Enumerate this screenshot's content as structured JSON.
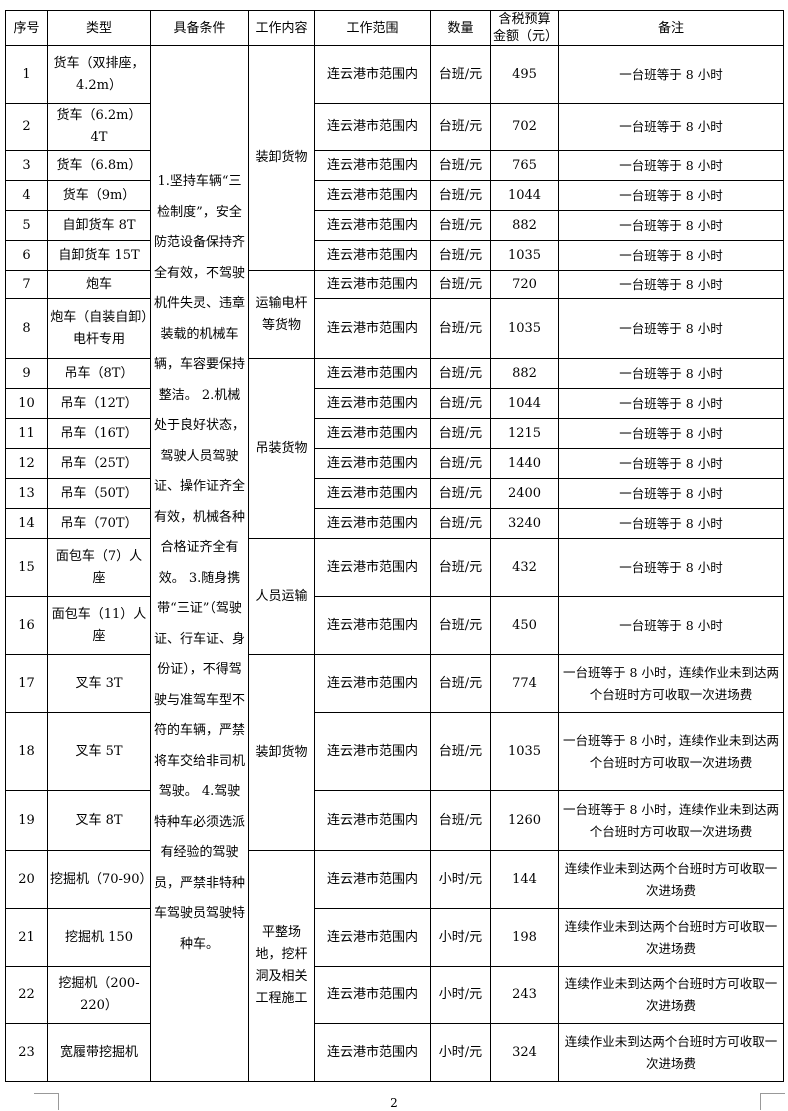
{
  "headers": {
    "no": "序号",
    "type": "类型",
    "conditions": "具备条件",
    "work": "工作内容",
    "scope": "工作范围",
    "qty": "数量",
    "budget": "含税预算金额（元）",
    "note": "备注"
  },
  "conditions": "1.坚持车辆“三检制度”，安全防范设备保持齐全有效，不驾驶机件失灵、违章装载的机械车辆，车容要保持整洁。 2.机械处于良好状态，驾驶人员驾驶证、操作证齐全有效，机械各种合格证齐全有效。 3.随身携带“三证”（驾驶证、行车证、身份证），不得驾驶与准驾车型不符的车辆，严禁将车交给非司机驾驶。 4.驾驶特种车必须选派有经验的驾驶员，严禁非特种车驾驶员驾驶特种车。",
  "work": [
    "装卸货物",
    "运输电杆等货物",
    "吊装货物",
    "人员运输",
    "装卸货物",
    "平整场地，挖杆洞及相关工程施工"
  ],
  "rows": [
    {
      "no": "1",
      "type": "货车（双排座，4.2m）",
      "scope": "连云港市范围内",
      "qty": "台班/元",
      "budget": "495",
      "note": "一台班等于 8 小时"
    },
    {
      "no": "2",
      "type": "货车（6.2m）4T",
      "scope": "连云港市范围内",
      "qty": "台班/元",
      "budget": "702",
      "note": "一台班等于 8 小时"
    },
    {
      "no": "3",
      "type": "货车（6.8m）",
      "scope": "连云港市范围内",
      "qty": "台班/元",
      "budget": "765",
      "note": "一台班等于 8 小时"
    },
    {
      "no": "4",
      "type": "货车（9m）",
      "scope": "连云港市范围内",
      "qty": "台班/元",
      "budget": "1044",
      "note": "一台班等于 8 小时"
    },
    {
      "no": "5",
      "type": "自卸货车 8T",
      "scope": "连云港市范围内",
      "qty": "台班/元",
      "budget": "882",
      "note": "一台班等于 8 小时"
    },
    {
      "no": "6",
      "type": "自卸货车 15T",
      "scope": "连云港市范围内",
      "qty": "台班/元",
      "budget": "1035",
      "note": "一台班等于 8 小时"
    },
    {
      "no": "7",
      "type": "炮车",
      "scope": "连云港市范围内",
      "qty": "台班/元",
      "budget": "720",
      "note": "一台班等于 8 小时"
    },
    {
      "no": "8",
      "type": "炮车（自装自卸）电杆专用",
      "scope": "连云港市范围内",
      "qty": "台班/元",
      "budget": "1035",
      "note": "一台班等于 8 小时"
    },
    {
      "no": "9",
      "type": "吊车（8T）",
      "scope": "连云港市范围内",
      "qty": "台班/元",
      "budget": "882",
      "note": "一台班等于 8 小时"
    },
    {
      "no": "10",
      "type": "吊车（12T）",
      "scope": "连云港市范围内",
      "qty": "台班/元",
      "budget": "1044",
      "note": "一台班等于 8 小时"
    },
    {
      "no": "11",
      "type": "吊车（16T）",
      "scope": "连云港市范围内",
      "qty": "台班/元",
      "budget": "1215",
      "note": "一台班等于 8 小时"
    },
    {
      "no": "12",
      "type": "吊车（25T）",
      "scope": "连云港市范围内",
      "qty": "台班/元",
      "budget": "1440",
      "note": "一台班等于 8 小时"
    },
    {
      "no": "13",
      "type": "吊车（50T）",
      "scope": "连云港市范围内",
      "qty": "台班/元",
      "budget": "2400",
      "note": "一台班等于 8 小时"
    },
    {
      "no": "14",
      "type": "吊车（70T）",
      "scope": "连云港市范围内",
      "qty": "台班/元",
      "budget": "3240",
      "note": "一台班等于 8 小时"
    },
    {
      "no": "15",
      "type": "面包车（7）人座",
      "scope": "连云港市范围内",
      "qty": "台班/元",
      "budget": "432",
      "note": "一台班等于 8 小时"
    },
    {
      "no": "16",
      "type": "面包车（11）人座",
      "scope": "连云港市范围内",
      "qty": "台班/元",
      "budget": "450",
      "note": "一台班等于 8 小时"
    },
    {
      "no": "17",
      "type": "叉车 3T",
      "scope": "连云港市范围内",
      "qty": "台班/元",
      "budget": "774",
      "note": "一台班等于 8 小时，连续作业未到达两个台班时方可收取一次进场费"
    },
    {
      "no": "18",
      "type": "叉车 5T",
      "scope": "连云港市范围内",
      "qty": "台班/元",
      "budget": "1035",
      "note": "一台班等于 8 小时，连续作业未到达两个台班时方可收取一次进场费"
    },
    {
      "no": "19",
      "type": "叉车 8T",
      "scope": "连云港市范围内",
      "qty": "台班/元",
      "budget": "1260",
      "note": "一台班等于 8 小时，连续作业未到达两个台班时方可收取一次进场费"
    },
    {
      "no": "20",
      "type": "挖掘机（70-90）",
      "scope": "连云港市范围内",
      "qty": "小时/元",
      "budget": "144",
      "note": "连续作业未到达两个台班时方可收取一次进场费"
    },
    {
      "no": "21",
      "type": "挖掘机 150",
      "scope": "连云港市范围内",
      "qty": "小时/元",
      "budget": "198",
      "note": "连续作业未到达两个台班时方可收取一次进场费"
    },
    {
      "no": "22",
      "type": "挖掘机（200-220）",
      "scope": "连云港市范围内",
      "qty": "小时/元",
      "budget": "243",
      "note": "连续作业未到达两个台班时方可收取一次进场费"
    },
    {
      "no": "23",
      "type": "宽履带挖掘机",
      "scope": "连云港市范围内",
      "qty": "小时/元",
      "budget": "324",
      "note": "连续作业未到达两个台班时方可收取一次进场费"
    }
  ],
  "page_number": "2"
}
